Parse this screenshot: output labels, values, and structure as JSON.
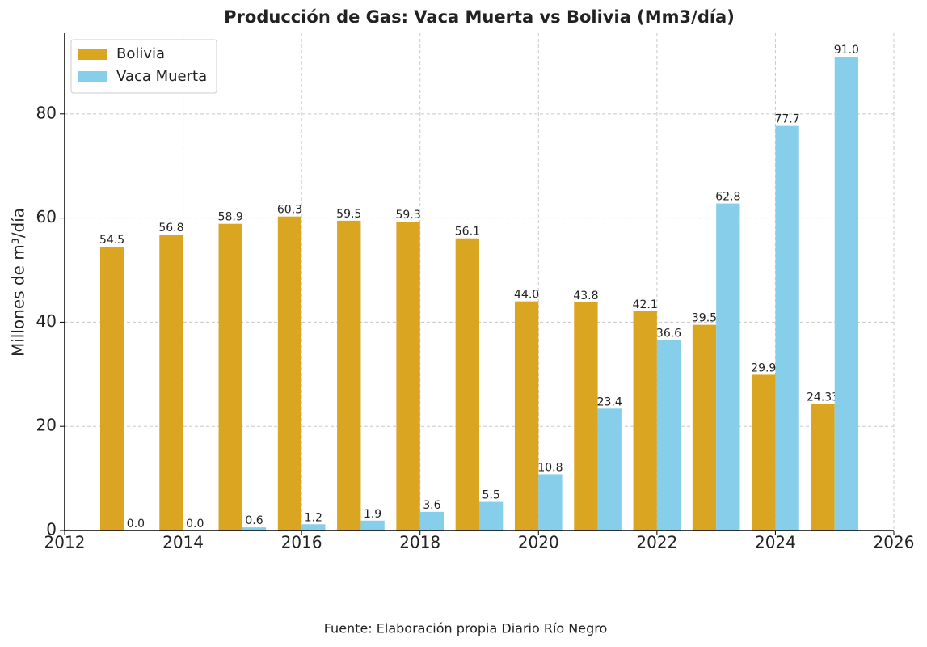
{
  "chart_data": {
    "type": "bar",
    "title": "Producción de Gas: Vaca Muerta vs Bolivia (Mm3/día)",
    "y_label": "Millones de m³/día",
    "source": "Fuente: Elaboración propia Diario Río Negro",
    "x": [
      2013,
      2014,
      2015,
      2016,
      2017,
      2018,
      2019,
      2020,
      2021,
      2022,
      2023,
      2024,
      2025
    ],
    "series": [
      {
        "name": "Bolivia",
        "color": "#DAA520",
        "values": [
          54.5,
          56.8,
          58.9,
          60.3,
          59.5,
          59.3,
          56.1,
          44.0,
          43.8,
          42.1,
          39.5,
          29.9,
          24.33
        ],
        "value_labels": [
          "54.5",
          "56.8",
          "58.9",
          "60.3",
          "59.5",
          "59.3",
          "56.1",
          "44.0",
          "43.8",
          "42.1",
          "39.5",
          "29.9",
          "24.33"
        ]
      },
      {
        "name": "Vaca Muerta",
        "color": "#87CEEB",
        "values": [
          0,
          0,
          0.6,
          1.2,
          1.9,
          3.6,
          5.5,
          10.8,
          23.4,
          36.6,
          62.8,
          77.7,
          91.0
        ],
        "value_labels": [
          "0.0",
          "0.0",
          "0.6",
          "1.2",
          "1.9",
          "3.6",
          "5.5",
          "10.8",
          "23.4",
          "36.6",
          "62.8",
          "77.7",
          "91.0"
        ]
      }
    ],
    "xlim": [
      2012,
      2026
    ],
    "xticks": [
      2012,
      2014,
      2016,
      2018,
      2020,
      2022,
      2024,
      2026
    ],
    "ylim": [
      0,
      95.5
    ],
    "yticks": [
      0,
      20,
      40,
      60,
      80
    ],
    "grid": true,
    "legend": "upper left"
  }
}
